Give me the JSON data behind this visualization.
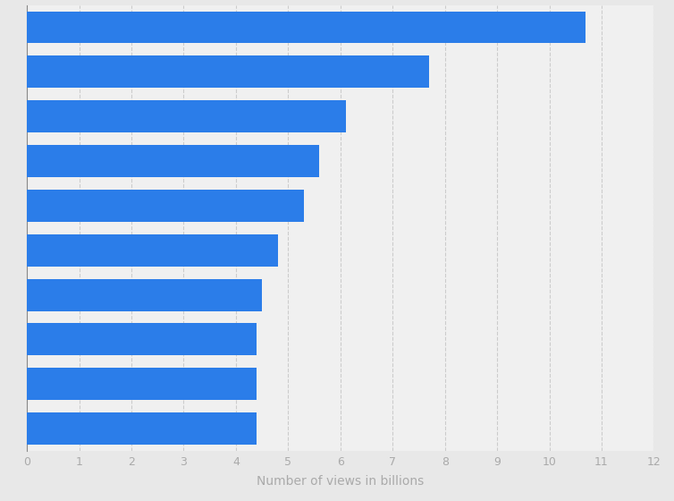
{
  "values": [
    10.7,
    7.7,
    6.1,
    5.6,
    5.3,
    4.8,
    4.5,
    4.4,
    4.4,
    4.4
  ],
  "bar_color": "#2b7de9",
  "background_color": "#e8e8e8",
  "plot_background_color": "#f0f0f0",
  "xlabel": "Number of views in billions",
  "xlim": [
    0,
    12
  ],
  "xticks": [
    0,
    1,
    2,
    3,
    4,
    5,
    6,
    7,
    8,
    9,
    10,
    11,
    12
  ],
  "grid_color": "#cccccc",
  "tick_label_color": "#aaaaaa",
  "xlabel_color": "#aaaaaa",
  "bar_height": 0.72,
  "xlabel_fontsize": 10,
  "tick_fontsize": 9
}
